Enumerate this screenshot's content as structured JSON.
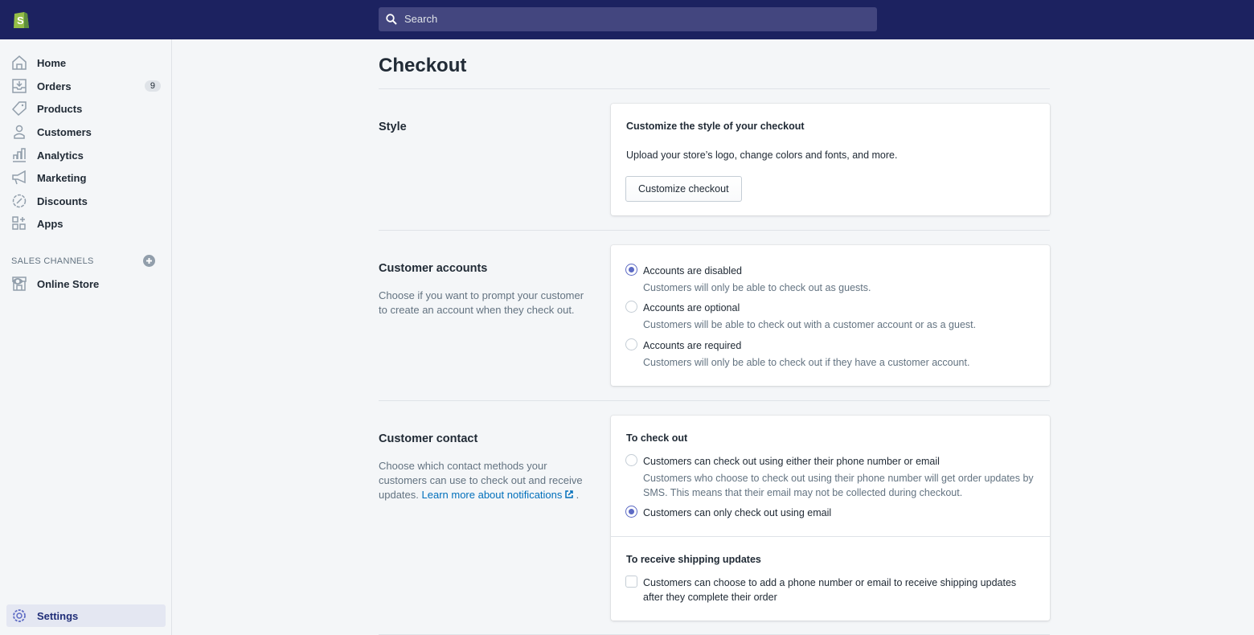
{
  "topbar": {
    "search_placeholder": "Search"
  },
  "sidebar": {
    "items": [
      {
        "label": "Home",
        "icon": "home-icon"
      },
      {
        "label": "Orders",
        "icon": "orders-icon",
        "badge": "9"
      },
      {
        "label": "Products",
        "icon": "tag-icon"
      },
      {
        "label": "Customers",
        "icon": "person-icon"
      },
      {
        "label": "Analytics",
        "icon": "bar-chart-icon"
      },
      {
        "label": "Marketing",
        "icon": "megaphone-icon"
      },
      {
        "label": "Discounts",
        "icon": "discount-icon"
      },
      {
        "label": "Apps",
        "icon": "apps-icon"
      }
    ],
    "sales_channels_label": "SALES CHANNELS",
    "online_store": "Online Store",
    "settings": "Settings"
  },
  "page": {
    "title": "Checkout"
  },
  "style": {
    "title": "Style",
    "card_heading": "Customize the style of your checkout",
    "card_text": "Upload your store’s logo, change colors and fonts, and more.",
    "button": "Customize checkout"
  },
  "accounts": {
    "title": "Customer accounts",
    "description": "Choose if you want to prompt your customer to create an account when they check out.",
    "options": [
      {
        "label": "Accounts are disabled",
        "desc": "Customers will only be able to check out as guests.",
        "selected": true
      },
      {
        "label": "Accounts are optional",
        "desc": "Customers will be able to check out with a customer account or as a guest.",
        "selected": false
      },
      {
        "label": "Accounts are required",
        "desc": "Customers will only be able to check out if they have a customer account.",
        "selected": false
      }
    ]
  },
  "contact": {
    "title": "Customer contact",
    "description": "Choose which contact methods your customers can use to check out and receive updates.",
    "link": "Learn more about notifications",
    "link_suffix": ".",
    "checkout_heading": "To check out",
    "options": [
      {
        "label": "Customers can check out using either their phone number or email",
        "desc": "Customers who choose to check out using their phone number will get order updates by SMS. This means that their email may not be collected during checkout.",
        "selected": false
      },
      {
        "label": "Customers can only check out using email",
        "selected": true
      }
    ],
    "shipping_heading": "To receive shipping updates",
    "shipping_checkbox": "Customers can choose to add a phone number or email to receive shipping updates after they complete their order",
    "shipping_checked": false
  },
  "colors": {
    "topbar": "#1c2260",
    "accent": "#5c6ac4",
    "link": "#006fbb"
  }
}
